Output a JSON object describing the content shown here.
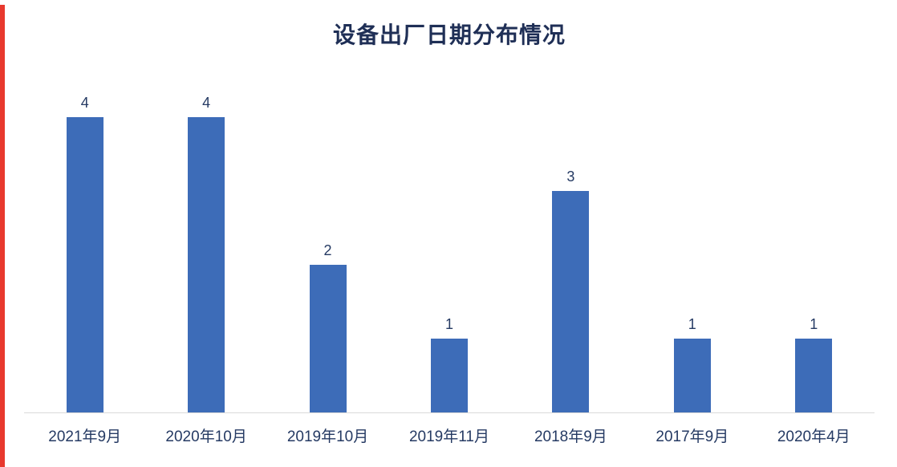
{
  "page": {
    "left_strip_color": "#e8392e",
    "background_color": "#ffffff",
    "axis_line_color": "#d9d9d9"
  },
  "chart_data": {
    "type": "bar",
    "title": "设备出厂日期分布情况",
    "categories": [
      "2021年9月",
      "2020年10月",
      "2019年10月",
      "2019年11月",
      "2018年9月",
      "2017年9月",
      "2020年4月"
    ],
    "values": [
      4,
      4,
      2,
      1,
      3,
      1,
      1
    ],
    "xlabel": "",
    "ylabel": "",
    "ylim": [
      0,
      4
    ],
    "grid": false,
    "legend_position": "none",
    "bar_color": "#3d6cb8",
    "title_color": "#1f2f56",
    "value_label_color": "#253a63",
    "category_label_color": "#253a63"
  }
}
